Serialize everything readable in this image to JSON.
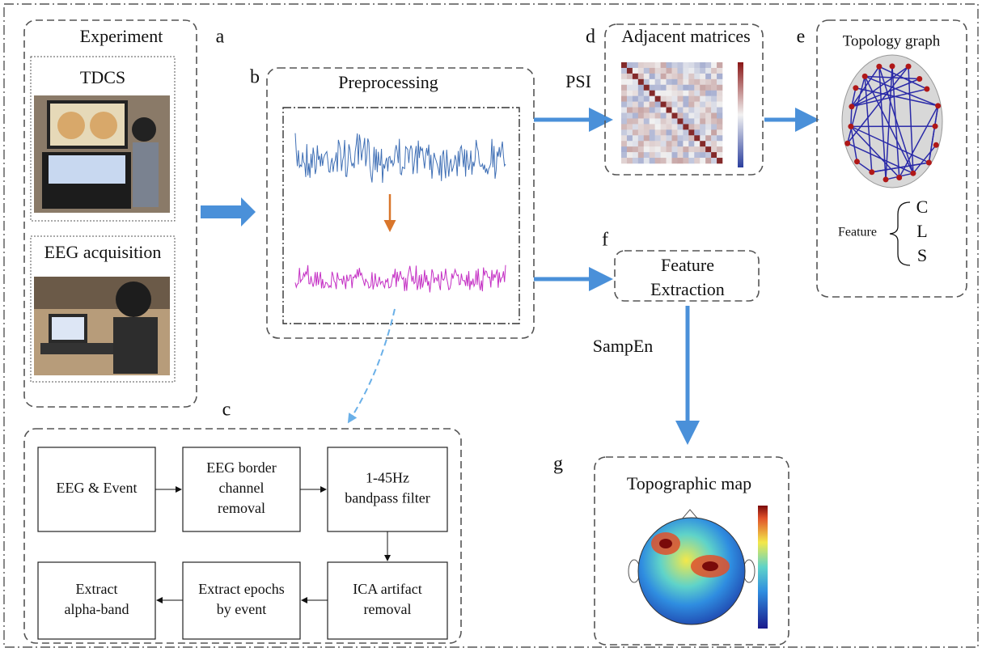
{
  "panels": {
    "a": {
      "letter": "a",
      "title": "Experiment",
      "items": [
        "TDCS",
        "EEG acquisition"
      ]
    },
    "b": {
      "letter": "b",
      "title": "Preprocessing"
    },
    "c": {
      "letter": "c",
      "steps": [
        {
          "lines": [
            "EEG & Event"
          ]
        },
        {
          "lines": [
            "EEG border",
            "channel",
            "removal"
          ]
        },
        {
          "lines": [
            "1-45Hz",
            "bandpass filter"
          ]
        },
        {
          "lines": [
            "ICA artifact",
            "removal"
          ]
        },
        {
          "lines": [
            "Extract epochs",
            "by event"
          ]
        },
        {
          "lines": [
            "Extract",
            "alpha-band"
          ]
        }
      ]
    },
    "d": {
      "letter": "d",
      "title": "Adjacent matrices"
    },
    "e": {
      "letter": "e",
      "title": "Topology graph",
      "feature_label": "Feature",
      "features": [
        "C",
        "L",
        "S"
      ]
    },
    "f": {
      "letter": "f",
      "title_lines": [
        "Feature",
        "Extraction"
      ]
    },
    "g": {
      "letter": "g",
      "title": "Topographic map"
    }
  },
  "edges": {
    "psi": "PSI",
    "sampen": "SampEn"
  }
}
